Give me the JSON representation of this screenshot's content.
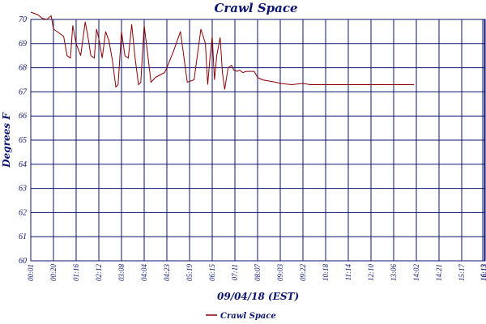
{
  "chart_data": {
    "type": "line",
    "title": "Crawl Space",
    "xlabel": "09/04/18 (EST)",
    "ylabel": "Degrees F",
    "ylim": [
      60,
      70
    ],
    "yticks": [
      "60",
      "61",
      "62",
      "63",
      "64",
      "65",
      "66",
      "67",
      "68",
      "69",
      "70"
    ],
    "xticks": [
      "00:01",
      "00:20",
      "01:16",
      "02:12",
      "03:08",
      "04:04",
      "04:23",
      "05:19",
      "06:15",
      "07:11",
      "08:07",
      "09:03",
      "09:22",
      "10:18",
      "11:14",
      "12:10",
      "13:06",
      "14:02",
      "14:21",
      "15:17",
      "16:13",
      "16:13"
    ],
    "grid": true,
    "legend": "bottom",
    "colors": {
      "line": "#8b0000",
      "grid": "#0b1470",
      "text": "#0b1470"
    },
    "series": [
      {
        "name": "Crawl Space",
        "x": [
          0,
          0.3,
          0.5,
          0.7,
          0.9,
          1.0,
          1.15,
          1.3,
          1.45,
          1.6,
          1.75,
          1.85,
          2.0,
          2.2,
          2.4,
          2.5,
          2.65,
          2.8,
          2.9,
          3.0,
          3.15,
          3.3,
          3.45,
          3.6,
          3.75,
          3.85,
          4.0,
          4.15,
          4.3,
          4.45,
          4.6,
          4.75,
          4.85,
          5.0,
          5.15,
          5.3,
          5.5,
          5.6,
          5.7,
          5.8,
          5.9,
          6.0,
          6.3,
          6.6,
          6.9,
          7.2,
          7.5,
          7.7,
          7.8,
          7.9,
          8.0,
          8.1,
          8.2,
          8.35,
          8.45,
          8.55,
          8.7,
          8.85,
          8.95,
          9.1,
          9.2,
          9.35,
          9.5,
          9.6,
          9.75,
          9.85,
          10.0,
          10.1,
          10.2,
          10.5,
          10.8,
          11.0,
          11.5,
          12.0,
          12.3,
          12.6,
          12.9,
          13.2,
          13.5,
          14.0,
          14.5,
          15.0,
          15.5,
          16.0,
          16.4,
          16.9
        ],
        "y": [
          70.3,
          70.2,
          70.05,
          70.0,
          70.15,
          69.6,
          69.5,
          69.4,
          69.3,
          68.5,
          68.4,
          69.75,
          69.0,
          68.5,
          69.9,
          69.4,
          68.5,
          68.4,
          69.6,
          69.2,
          68.4,
          69.5,
          69.1,
          68.3,
          67.2,
          67.3,
          69.5,
          68.5,
          68.4,
          69.8,
          68.4,
          67.3,
          67.4,
          69.75,
          68.6,
          67.4,
          67.6,
          67.65,
          67.7,
          67.75,
          67.8,
          68.0,
          68.7,
          69.5,
          67.4,
          67.5,
          69.6,
          69.0,
          67.3,
          68.4,
          69.3,
          67.5,
          68.5,
          69.25,
          67.8,
          67.1,
          68.0,
          68.1,
          67.9,
          67.85,
          67.9,
          67.8,
          67.85,
          67.85,
          67.85,
          67.85,
          67.6,
          67.55,
          67.5,
          67.45,
          67.4,
          67.35,
          67.3,
          67.35,
          67.3,
          67.3,
          67.3,
          67.3,
          67.3,
          67.3,
          67.3,
          67.3,
          67.3,
          67.3,
          67.3,
          67.3
        ]
      }
    ]
  }
}
